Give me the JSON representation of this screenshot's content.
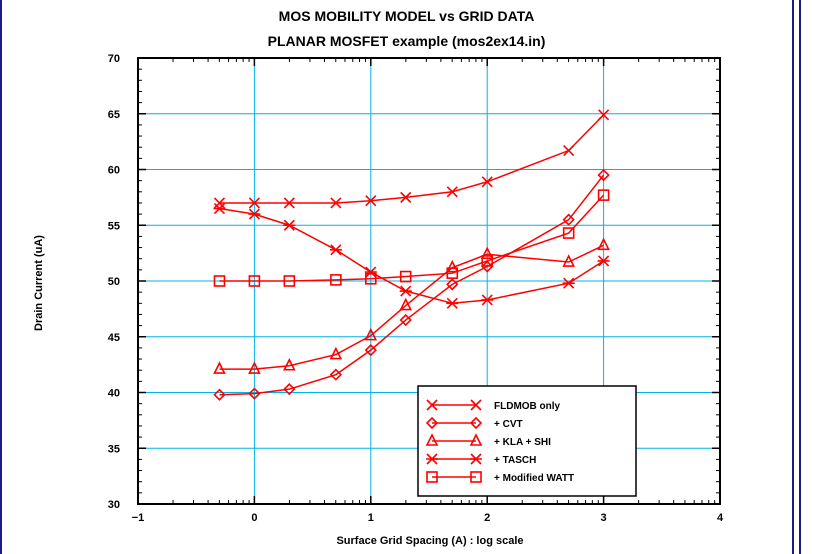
{
  "chart_data": {
    "type": "line",
    "title": "MOS MOBILITY MODEL vs GRID DATA",
    "subtitle": "PLANAR MOSFET example (mos2ex14.in)",
    "xlabel": "Surface Grid Spacing (A)  :  log scale",
    "ylabel": "Drain Current (uA)",
    "xlim": [
      -1,
      4
    ],
    "ylim": [
      30,
      70
    ],
    "xticks": [
      -1,
      0,
      1,
      2,
      3,
      4
    ],
    "yticks": [
      30,
      35,
      40,
      45,
      50,
      55,
      60,
      65,
      70
    ],
    "grid": true,
    "grid_color": "#00b4e6",
    "series_color": "#ff0000",
    "legend_position": "bottom-right",
    "series": [
      {
        "name": "FLDMOB only",
        "marker": "x",
        "x": [
          -0.3,
          0,
          0.3,
          0.7,
          1.0,
          1.3,
          1.7,
          2.0,
          2.7,
          3.0
        ],
        "y": [
          57.0,
          57.0,
          57.0,
          57.0,
          57.2,
          57.5,
          58.0,
          58.9,
          61.7,
          64.9
        ]
      },
      {
        "name": "  + CVT",
        "marker": "diamond",
        "x": [
          -0.3,
          0,
          0.3,
          0.7,
          1.0,
          1.3,
          1.7,
          2.0,
          2.7,
          3.0
        ],
        "y": [
          39.8,
          39.9,
          40.3,
          41.6,
          43.8,
          46.5,
          49.7,
          51.3,
          55.5,
          59.5
        ]
      },
      {
        "name": "  + KLA + SHI",
        "marker": "triangle",
        "x": [
          -0.3,
          0,
          0.3,
          0.7,
          1.0,
          1.3,
          1.7,
          2.0,
          2.7,
          3.0
        ],
        "y": [
          42.1,
          42.1,
          42.4,
          43.4,
          45.1,
          47.8,
          51.2,
          52.4,
          51.7,
          53.2
        ]
      },
      {
        "name": "  + TASCH",
        "marker": "asterisk",
        "x": [
          -0.3,
          0,
          0.3,
          0.7,
          1.0,
          1.3,
          1.7,
          2.0,
          2.7,
          3.0
        ],
        "y": [
          56.5,
          56.0,
          55.0,
          52.8,
          50.8,
          49.1,
          48.0,
          48.3,
          49.8,
          51.8
        ]
      },
      {
        "name": "  + Modified WATT",
        "marker": "square",
        "x": [
          -0.3,
          0,
          0.3,
          0.7,
          1.0,
          1.3,
          1.7,
          2.0,
          2.7,
          3.0
        ],
        "y": [
          50.0,
          50.0,
          50.0,
          50.1,
          50.2,
          50.4,
          50.7,
          51.8,
          54.3,
          57.7
        ]
      }
    ]
  }
}
